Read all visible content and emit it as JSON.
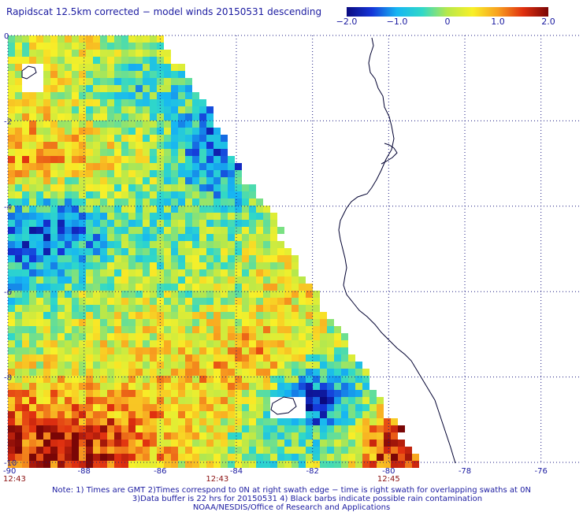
{
  "title": "Rapidscat 12.5km corrected − model winds 20150531 descending",
  "colorbar": {
    "ticks": [
      "−2.0",
      "−1.0",
      "0",
      "1.0",
      "2.0"
    ],
    "tick_values": [
      -2.0,
      -1.0,
      0,
      1.0,
      2.0
    ],
    "range": [
      -2.0,
      2.0
    ],
    "colors": [
      "#0a0a80",
      "#1535d8",
      "#17b6f2",
      "#30d8c8",
      "#b8e84a",
      "#f8f028",
      "#f8a020",
      "#e03010",
      "#7a0606"
    ]
  },
  "map": {
    "lon_range": [
      -90,
      -75
    ],
    "lat_range": [
      -10,
      0
    ],
    "lon_ticks": [
      "-90",
      "-88",
      "-86",
      "-84",
      "-82",
      "-80",
      "-78",
      "-76"
    ],
    "lon_tick_values": [
      -90,
      -88,
      -86,
      -84,
      -82,
      -80,
      -78,
      -76
    ],
    "lat_ticks": [
      "0",
      "-2",
      "-4",
      "-6",
      "-8",
      "-10"
    ],
    "lat_tick_values": [
      0,
      -2,
      -4,
      -6,
      -8,
      -10
    ],
    "time_labels": [
      "12:43",
      "12:43",
      "12:45"
    ],
    "time_label_lons": [
      -90,
      -84.5,
      -80
    ],
    "land_color": "#ffffff",
    "coast_color": "#000030",
    "grid_color": "#1a1a80"
  },
  "footer": {
    "line1": "Note: 1) Times are GMT 2)Times correspond to 0N at right swath edge − time is right swath for overlapping swaths at 0N",
    "line2": "3)Data buffer is 22 hrs for 20150531 4) Black barbs indicate possible rain contamination",
    "line3": "NOAA/NESDIS/Office of Research and Applications"
  }
}
